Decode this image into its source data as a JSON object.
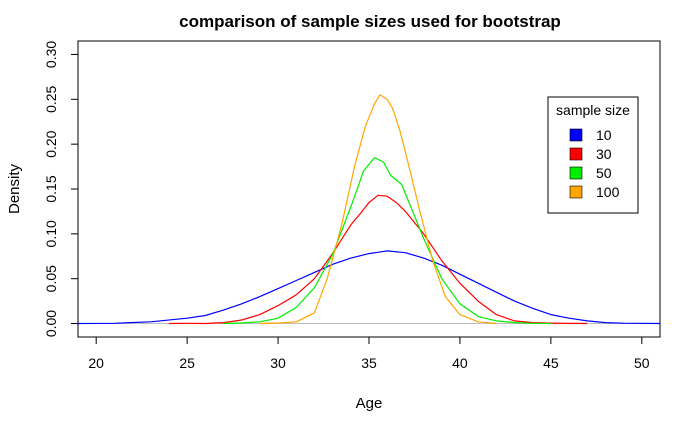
{
  "chart_data": {
    "type": "line",
    "title": "comparison of sample sizes used for bootstrap",
    "xlabel": "Age",
    "ylabel": "Density",
    "xlim": [
      19,
      51
    ],
    "ylim": [
      -0.015,
      0.315
    ],
    "x_ticks": [
      20,
      25,
      30,
      35,
      40,
      45,
      50
    ],
    "y_ticks": [
      0.0,
      0.05,
      0.1,
      0.15,
      0.2,
      0.25,
      0.3
    ],
    "x_tick_labels": [
      "20",
      "25",
      "30",
      "35",
      "40",
      "45",
      "50"
    ],
    "y_tick_labels": [
      "0.00",
      "0.05",
      "0.10",
      "0.15",
      "0.20",
      "0.25",
      "0.30"
    ],
    "baseline_y": 0,
    "grid": false,
    "legend": {
      "title": "sample size",
      "position": "right",
      "entries": [
        "10",
        "30",
        "50",
        "100"
      ]
    },
    "series": [
      {
        "name": "10",
        "color": "#0000ff",
        "points": [
          [
            19,
            0.0
          ],
          [
            21,
            0.0003
          ],
          [
            23,
            0.002
          ],
          [
            25,
            0.006
          ],
          [
            26,
            0.009
          ],
          [
            27,
            0.015
          ],
          [
            28,
            0.022
          ],
          [
            29,
            0.03
          ],
          [
            30,
            0.039
          ],
          [
            31,
            0.048
          ],
          [
            32,
            0.057
          ],
          [
            33,
            0.066
          ],
          [
            34,
            0.073
          ],
          [
            35,
            0.078
          ],
          [
            36,
            0.081
          ],
          [
            37,
            0.079
          ],
          [
            38,
            0.073
          ],
          [
            39,
            0.065
          ],
          [
            40,
            0.055
          ],
          [
            41,
            0.045
          ],
          [
            42,
            0.035
          ],
          [
            43,
            0.025
          ],
          [
            44,
            0.017
          ],
          [
            45,
            0.01
          ],
          [
            46,
            0.006
          ],
          [
            47,
            0.003
          ],
          [
            48,
            0.001
          ],
          [
            49,
            0.0004
          ],
          [
            51,
            0.0
          ]
        ]
      },
      {
        "name": "30",
        "color": "#ff0000",
        "points": [
          [
            24,
            0.0
          ],
          [
            25,
            0.0003
          ],
          [
            26,
            0.0
          ],
          [
            27,
            0.001
          ],
          [
            28,
            0.004
          ],
          [
            29,
            0.01
          ],
          [
            30,
            0.02
          ],
          [
            31,
            0.032
          ],
          [
            32,
            0.05
          ],
          [
            33,
            0.078
          ],
          [
            34,
            0.11
          ],
          [
            34.5,
            0.122
          ],
          [
            35,
            0.135
          ],
          [
            35.5,
            0.143
          ],
          [
            36,
            0.142
          ],
          [
            36.5,
            0.135
          ],
          [
            37,
            0.125
          ],
          [
            38,
            0.1
          ],
          [
            39,
            0.07
          ],
          [
            40,
            0.045
          ],
          [
            41,
            0.025
          ],
          [
            42,
            0.01
          ],
          [
            43,
            0.003
          ],
          [
            44,
            0.001
          ],
          [
            45,
            0.0005
          ],
          [
            46,
            0.0002
          ],
          [
            47,
            0.0
          ]
        ]
      },
      {
        "name": "50",
        "color": "#00ee00",
        "points": [
          [
            27,
            0.0
          ],
          [
            28,
            0.0006
          ],
          [
            29,
            0.002
          ],
          [
            30,
            0.006
          ],
          [
            31,
            0.018
          ],
          [
            32,
            0.04
          ],
          [
            33,
            0.077
          ],
          [
            34,
            0.13
          ],
          [
            34.7,
            0.17
          ],
          [
            35.3,
            0.185
          ],
          [
            35.8,
            0.18
          ],
          [
            36.2,
            0.165
          ],
          [
            36.8,
            0.155
          ],
          [
            37.5,
            0.12
          ],
          [
            38,
            0.095
          ],
          [
            39,
            0.05
          ],
          [
            40,
            0.022
          ],
          [
            41,
            0.008
          ],
          [
            42,
            0.003
          ],
          [
            43,
            0.001
          ],
          [
            44,
            0.0003
          ],
          [
            45,
            0.0
          ]
        ]
      },
      {
        "name": "100",
        "color": "#ffa500",
        "points": [
          [
            29,
            0.0
          ],
          [
            30,
            0.0006
          ],
          [
            31,
            0.002
          ],
          [
            32,
            0.012
          ],
          [
            32.7,
            0.05
          ],
          [
            33.5,
            0.11
          ],
          [
            34.2,
            0.175
          ],
          [
            34.8,
            0.22
          ],
          [
            35.3,
            0.245
          ],
          [
            35.6,
            0.255
          ],
          [
            36,
            0.25
          ],
          [
            36.3,
            0.24
          ],
          [
            36.7,
            0.215
          ],
          [
            37.2,
            0.175
          ],
          [
            37.8,
            0.125
          ],
          [
            38.5,
            0.07
          ],
          [
            39.2,
            0.03
          ],
          [
            40,
            0.01
          ],
          [
            41,
            0.002
          ],
          [
            42,
            0.0
          ]
        ]
      }
    ]
  }
}
